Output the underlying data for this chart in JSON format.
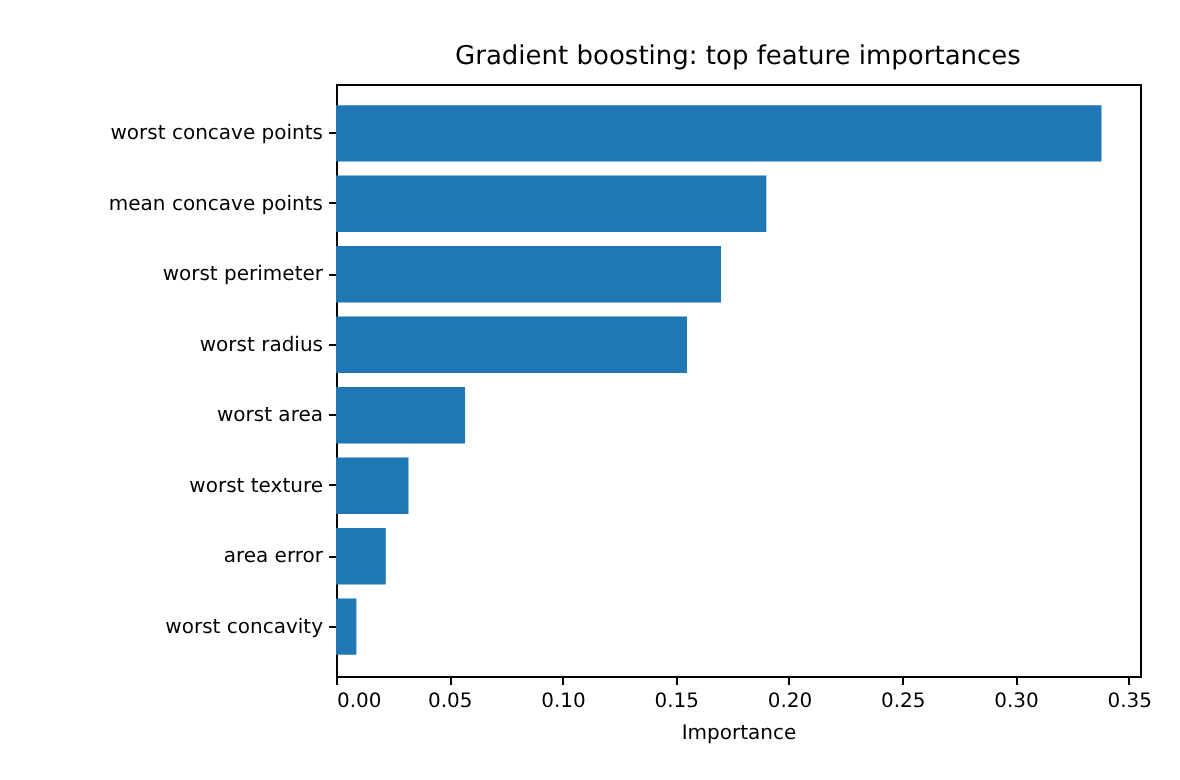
{
  "chart_data": {
    "type": "bar",
    "orientation": "horizontal",
    "title": "Gradient boosting: top feature importances",
    "xlabel": "Importance",
    "categories": [
      "worst concave points",
      "mean concave points",
      "worst perimeter",
      "worst radius",
      "worst area",
      "worst texture",
      "area error",
      "worst concavity"
    ],
    "values": [
      0.338,
      0.19,
      0.17,
      0.155,
      0.057,
      0.032,
      0.022,
      0.009
    ],
    "color": "#1f77b4",
    "xlim": [
      0,
      0.355
    ],
    "xticks": [
      {
        "value": 0,
        "label": "0.00"
      },
      {
        "value": 0.05,
        "label": "0.05"
      },
      {
        "value": 0.1,
        "label": "0.10"
      },
      {
        "value": 0.15,
        "label": "0.15"
      },
      {
        "value": 0.2,
        "label": "0.20"
      },
      {
        "value": 0.25,
        "label": "0.25"
      },
      {
        "value": 0.3,
        "label": "0.30"
      },
      {
        "value": 0.35,
        "label": "0.35"
      }
    ],
    "grid": false
  }
}
